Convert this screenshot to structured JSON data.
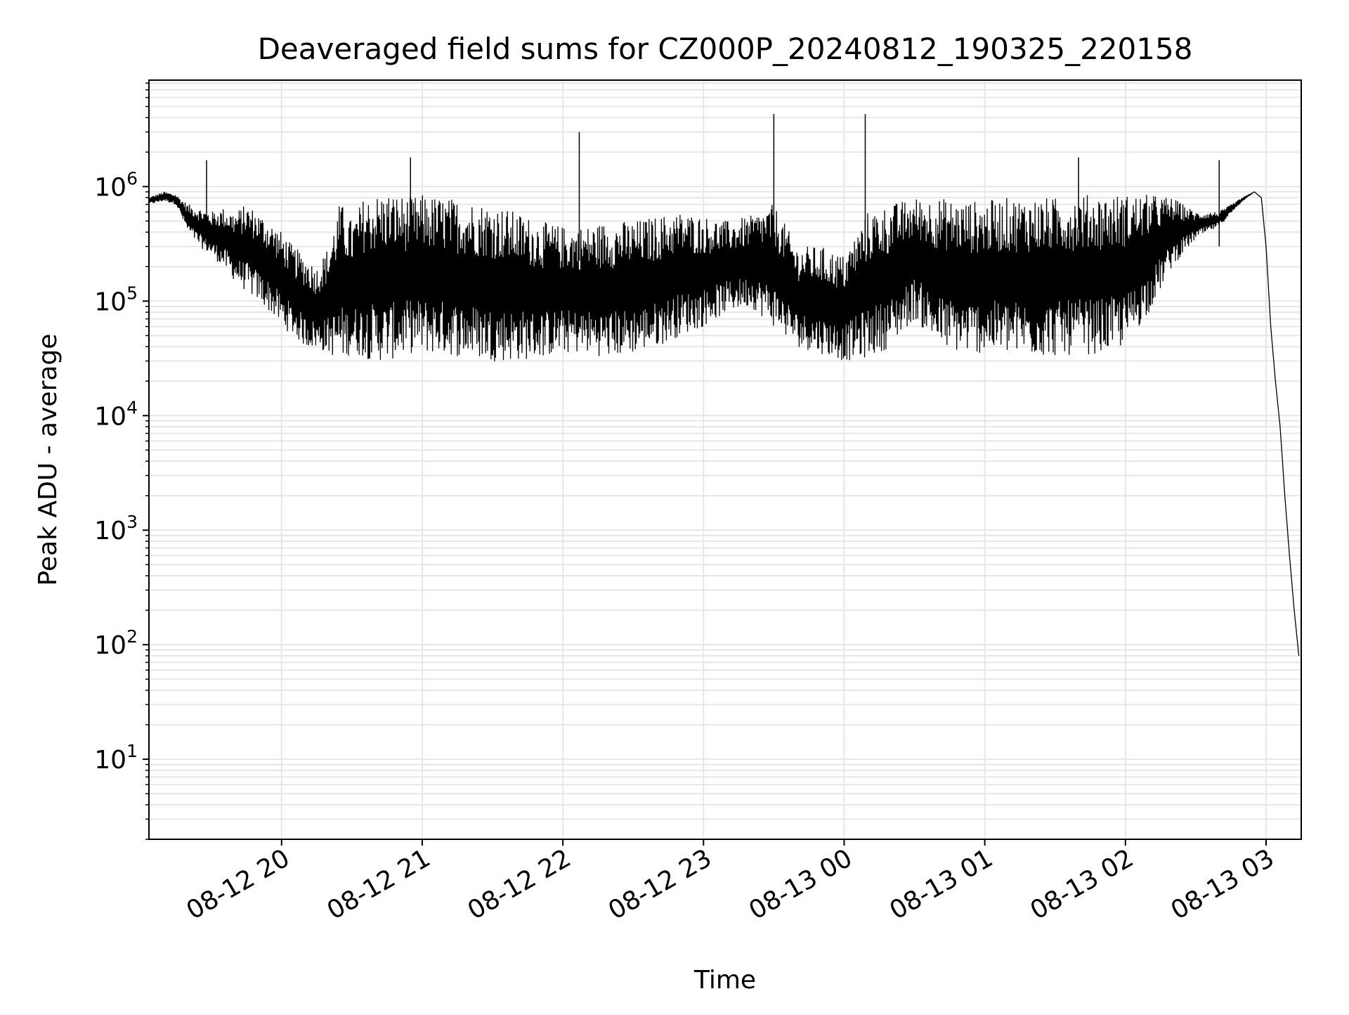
{
  "chart_data": {
    "type": "line",
    "title": "Deaveraged field sums for CZ000P_20240812_190325_220158",
    "xlabel": "Time",
    "ylabel": "Peak ADU - average",
    "x_scale": "time",
    "y_scale": "log",
    "xlim": [
      "2024-08-12 19:03:25",
      "2024-08-13 03:15:00"
    ],
    "ylim": [
      2,
      8500000
    ],
    "x_ticks": [
      {
        "label": "08-12 20",
        "value": "2024-08-12 20:00"
      },
      {
        "label": "08-12 21",
        "value": "2024-08-12 21:00"
      },
      {
        "label": "08-12 22",
        "value": "2024-08-12 22:00"
      },
      {
        "label": "08-12 23",
        "value": "2024-08-12 23:00"
      },
      {
        "label": "08-13 00",
        "value": "2024-08-13 00:00"
      },
      {
        "label": "08-13 01",
        "value": "2024-08-13 01:00"
      },
      {
        "label": "08-13 02",
        "value": "2024-08-13 02:00"
      },
      {
        "label": "08-13 03",
        "value": "2024-08-13 03:00"
      }
    ],
    "y_ticks": [
      {
        "base": "10",
        "exp": "1",
        "value": 10
      },
      {
        "base": "10",
        "exp": "2",
        "value": 100
      },
      {
        "base": "10",
        "exp": "3",
        "value": 1000
      },
      {
        "base": "10",
        "exp": "4",
        "value": 10000
      },
      {
        "base": "10",
        "exp": "5",
        "value": 100000
      },
      {
        "base": "10",
        "exp": "6",
        "value": 1000000
      }
    ],
    "grid": true,
    "legend": "none",
    "series": [
      {
        "color": "#000000",
        "x": [
          "2024-08-12 19:03",
          "2024-08-12 19:10",
          "2024-08-12 19:15",
          "2024-08-12 19:20",
          "2024-08-12 19:25",
          "2024-08-12 19:30",
          "2024-08-12 19:35",
          "2024-08-12 19:40",
          "2024-08-12 19:45",
          "2024-08-12 19:50",
          "2024-08-12 19:55",
          "2024-08-12 20:00",
          "2024-08-12 20:05",
          "2024-08-12 20:10",
          "2024-08-12 20:15",
          "2024-08-12 20:20",
          "2024-08-12 20:25",
          "2024-08-12 20:30",
          "2024-08-12 20:35",
          "2024-08-12 20:40",
          "2024-08-12 20:45",
          "2024-08-12 20:50",
          "2024-08-12 20:55",
          "2024-08-12 21:00",
          "2024-08-12 21:10",
          "2024-08-12 21:20",
          "2024-08-12 21:30",
          "2024-08-12 21:40",
          "2024-08-12 21:50",
          "2024-08-12 22:00",
          "2024-08-12 22:10",
          "2024-08-12 22:20",
          "2024-08-12 22:30",
          "2024-08-12 22:40",
          "2024-08-12 22:50",
          "2024-08-12 23:00",
          "2024-08-12 23:10",
          "2024-08-12 23:20",
          "2024-08-12 23:30",
          "2024-08-12 23:40",
          "2024-08-12 23:50",
          "2024-08-13 00:00",
          "2024-08-13 00:10",
          "2024-08-13 00:20",
          "2024-08-13 00:30",
          "2024-08-13 00:40",
          "2024-08-13 00:50",
          "2024-08-13 01:00",
          "2024-08-13 01:10",
          "2024-08-13 01:20",
          "2024-08-13 01:30",
          "2024-08-13 01:40",
          "2024-08-13 01:50",
          "2024-08-13 02:00",
          "2024-08-13 02:10",
          "2024-08-13 02:20",
          "2024-08-13 02:30",
          "2024-08-13 02:40",
          "2024-08-13 02:50",
          "2024-08-13 02:55",
          "2024-08-13 02:58",
          "2024-08-13 03:00",
          "2024-08-13 03:02",
          "2024-08-13 03:04",
          "2024-08-13 03:06",
          "2024-08-13 03:08",
          "2024-08-13 03:10",
          "2024-08-13 03:12",
          "2024-08-13 03:14"
        ],
        "y_high": [
          800000,
          900000,
          850000,
          700000,
          650000,
          600000,
          650000,
          600000,
          700000,
          600000,
          500000,
          400000,
          300000,
          250000,
          200000,
          300000,
          750000,
          500000,
          800000,
          850000,
          900000,
          850000,
          800000,
          850000,
          800000,
          750000,
          700000,
          600000,
          500000,
          450000,
          450000,
          500000,
          500000,
          550000,
          600000,
          550000,
          500000,
          550000,
          700000,
          300000,
          300000,
          250000,
          600000,
          700000,
          800000,
          800000,
          750000,
          750000,
          800000,
          800000,
          800000,
          850000,
          850000,
          850000,
          850000,
          800000,
          600000,
          600000,
          800000,
          900000,
          800000,
          300000,
          60000,
          20000,
          8000,
          2000,
          600,
          200,
          80
        ],
        "y_low": [
          700000,
          750000,
          700000,
          400000,
          300000,
          250000,
          200000,
          150000,
          120000,
          100000,
          80000,
          60000,
          50000,
          40000,
          38000,
          35000,
          30000,
          35000,
          32000,
          30000,
          30000,
          32000,
          35000,
          35000,
          34000,
          32000,
          30000,
          30000,
          32000,
          35000,
          35000,
          32000,
          35000,
          40000,
          50000,
          60000,
          80000,
          90000,
          60000,
          40000,
          35000,
          30000,
          32000,
          40000,
          70000,
          40000,
          35000,
          35000,
          34000,
          33000,
          33000,
          34000,
          35000,
          40000,
          80000,
          200000,
          350000,
          450000,
          750000,
          900000,
          800000,
          300000,
          60000,
          20000,
          8000,
          2000,
          600,
          200,
          80
        ]
      }
    ],
    "spikes": [
      {
        "x": "2024-08-12 19:28",
        "y": 1700000
      },
      {
        "x": "2024-08-12 20:55",
        "y": 1800000
      },
      {
        "x": "2024-08-12 22:07",
        "y": 3000000
      },
      {
        "x": "2024-08-12 23:30",
        "y": 4300000
      },
      {
        "x": "2024-08-13 00:09",
        "y": 4300000
      },
      {
        "x": "2024-08-13 01:40",
        "y": 1800000
      },
      {
        "x": "2024-08-13 02:40",
        "y": 1700000
      }
    ]
  }
}
